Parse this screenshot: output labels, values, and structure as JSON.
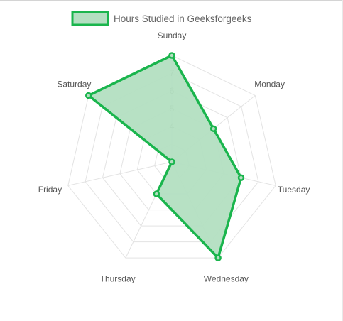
{
  "chart_data": {
    "type": "radar",
    "categories": [
      "Sunday",
      "Monday",
      "Tuesday",
      "Wednesday",
      "Thursday",
      "Friday",
      "Saturday"
    ],
    "series": [
      {
        "name": "Hours Studied in Geeksforgeeks",
        "values": [
          8,
          5,
          6,
          8,
          4,
          2,
          8
        ]
      }
    ],
    "rlim": [
      2,
      8
    ],
    "tick_values": [
      4,
      5,
      6,
      7,
      8
    ],
    "legend": "top",
    "grid": true,
    "colors": {
      "line": "#1ab54d",
      "fill": "#b3dfc1",
      "grid": "#e3e3e3"
    }
  }
}
